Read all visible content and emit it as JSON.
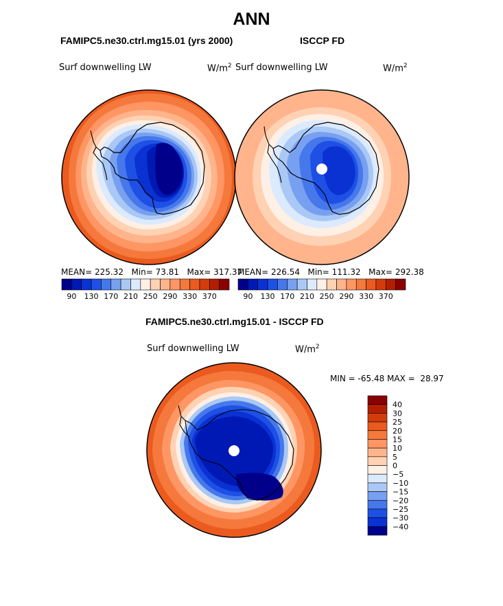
{
  "title": "ANN",
  "palette": {
    "blues": [
      "#00008b",
      "#0019b4",
      "#0a32d2",
      "#1e50e6",
      "#4678eb",
      "#78a0f0",
      "#aac8f5",
      "#dceaff"
    ],
    "reds": [
      "#fff0e6",
      "#ffd2b4",
      "#ffb48c",
      "#ff9664",
      "#f5783c",
      "#eb5a1e",
      "#d23c0a",
      "#b41e00",
      "#8b0000"
    ]
  },
  "panel_left": {
    "case_title": "FAMIPC5.ne30.ctrl.mg15.01 (yrs 2000)",
    "variable": "Surf downwelling LW",
    "units_base": "W/m",
    "units_exp": "2",
    "mean_label": "MEAN=",
    "mean": "225.32",
    "min_label": "Min=",
    "min": "73.81",
    "max_label": "Max=",
    "max": "317.37",
    "colorbar_labels": [
      "90",
      "130",
      "170",
      "210",
      "250",
      "290",
      "330",
      "370"
    ]
  },
  "panel_right": {
    "case_title": "ISCCP FD",
    "variable": "Surf downwelling LW",
    "units_base": "W/m",
    "units_exp": "2",
    "mean_label": "MEAN=",
    "mean": "226.54",
    "min_label": "Min=",
    "min": "111.32",
    "max_label": "Max=",
    "max": "292.38",
    "colorbar_labels": [
      "90",
      "130",
      "170",
      "210",
      "250",
      "290",
      "330",
      "370"
    ]
  },
  "panel_diff": {
    "case_title": "FAMIPC5.ne30.ctrl.mg15.01 - ISCCP FD",
    "variable": "Surf downwelling LW",
    "units_base": "W/m",
    "units_exp": "2",
    "minmax_text": "MIN = -65.48 MAX =  28.97",
    "colorbar_labels": [
      "40",
      "30",
      "25",
      "20",
      "15",
      "10",
      "5",
      "0",
      "-5",
      "-10",
      "-15",
      "-20",
      "-25",
      "-30",
      "-40"
    ],
    "colorbar_colors": [
      "#8b0000",
      "#b41e00",
      "#d23c0a",
      "#eb5a1e",
      "#f5783c",
      "#ff9664",
      "#ffb48c",
      "#ffd2b4",
      "#fff0e6",
      "#dceaff",
      "#aac8f5",
      "#78a0f0",
      "#4678eb",
      "#1e50e6",
      "#0a32d2",
      "#00008b"
    ]
  },
  "chart_data": [
    {
      "type": "heatmap",
      "projection": "south polar stereographic",
      "title": "FAMIPC5.ne30.ctrl.mg15.01 (yrs 2000)",
      "variable": "Surf downwelling LW",
      "units": "W/m^2",
      "levels": [
        90,
        110,
        130,
        150,
        170,
        190,
        210,
        230,
        250,
        270,
        290,
        310,
        330,
        350,
        370
      ],
      "mean": 225.32,
      "min": 73.81,
      "max": 317.37
    },
    {
      "type": "heatmap",
      "projection": "south polar stereographic",
      "title": "ISCCP FD",
      "variable": "Surf downwelling LW",
      "units": "W/m^2",
      "levels": [
        90,
        110,
        130,
        150,
        170,
        190,
        210,
        230,
        250,
        270,
        290,
        310,
        330,
        350,
        370
      ],
      "mean": 226.54,
      "min": 111.32,
      "max": 292.38
    },
    {
      "type": "heatmap",
      "projection": "south polar stereographic",
      "title": "FAMIPC5.ne30.ctrl.mg15.01 - ISCCP FD",
      "variable": "Surf downwelling LW",
      "units": "W/m^2",
      "levels": [
        -40,
        -30,
        -25,
        -20,
        -15,
        -10,
        -5,
        0,
        5,
        10,
        15,
        20,
        25,
        30,
        40
      ],
      "min": -65.48,
      "max": 28.97
    }
  ]
}
